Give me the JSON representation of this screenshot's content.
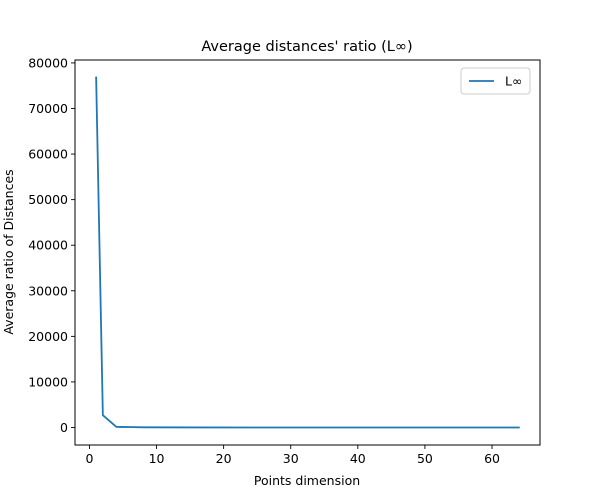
{
  "chart_data": {
    "type": "line",
    "title": "Average distances' ratio (L∞)",
    "xlabel": "Points dimension",
    "ylabel": "Average ratio of Distances",
    "xlim": [
      -2.15,
      67.15
    ],
    "ylim": [
      -3840,
      80640
    ],
    "xticks": [
      0,
      10,
      20,
      30,
      40,
      50,
      60
    ],
    "xtick_labels": [
      "0",
      "10",
      "20",
      "30",
      "40",
      "50",
      "60"
    ],
    "yticks": [
      0,
      10000,
      20000,
      30000,
      40000,
      50000,
      60000,
      70000,
      80000
    ],
    "ytick_labels": [
      "0",
      "10000",
      "20000",
      "30000",
      "40000",
      "50000",
      "60000",
      "70000",
      "80000"
    ],
    "grid": false,
    "legend": {
      "position": "top-right"
    },
    "series": [
      {
        "name": "L∞",
        "color": "#1f77b4",
        "x": [
          1,
          2,
          4,
          8,
          16,
          32,
          64
        ],
        "y": [
          76800,
          2700,
          150,
          40,
          12,
          5,
          2
        ]
      }
    ]
  }
}
